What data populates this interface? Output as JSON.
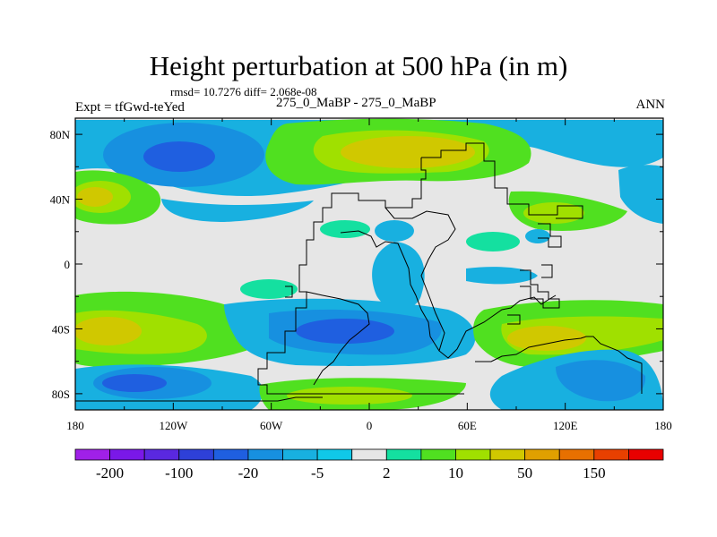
{
  "header": {
    "title": "Height perturbation at 500 hPa (in m)",
    "stats": "rmsd= 10.7276 diff= 2.068e-08",
    "experiment": "Expt = tfGwd-teYed",
    "center_label": "275_0_MaBP - 275_0_MaBP",
    "season": "ANN"
  },
  "chart_data": {
    "type": "heatmap",
    "title": "Height perturbation at 500 hPa (in m)",
    "x_ticks": [
      "180",
      "120W",
      "60W",
      "0",
      "60E",
      "120E",
      "180"
    ],
    "x_values": [
      -180,
      -120,
      -60,
      0,
      60,
      120,
      180
    ],
    "y_ticks": [
      "80N",
      "40N",
      "0",
      "40S",
      "80S"
    ],
    "y_values": [
      80,
      40,
      0,
      -40,
      -80
    ],
    "xlim": [
      -180,
      180
    ],
    "ylim": [
      -90,
      90
    ],
    "contour_levels": [
      -200,
      -150,
      -100,
      -50,
      -20,
      -10,
      -5,
      -2,
      2,
      5,
      10,
      20,
      50,
      100,
      150,
      200
    ],
    "colorbar_labels": [
      "-200",
      "-100",
      "-20",
      "-5",
      "2",
      "10",
      "50",
      "150"
    ],
    "colorbar_colors": [
      "#a020e8",
      "#7a18e8",
      "#5a28e0",
      "#2e40d8",
      "#1f5fe0",
      "#1790e0",
      "#18b0e0",
      "#10c8e8",
      "#e6e6e6",
      "#14e0a0",
      "#50e020",
      "#a0e000",
      "#d0c800",
      "#e0a000",
      "#e87000",
      "#e84000",
      "#e80000"
    ]
  }
}
